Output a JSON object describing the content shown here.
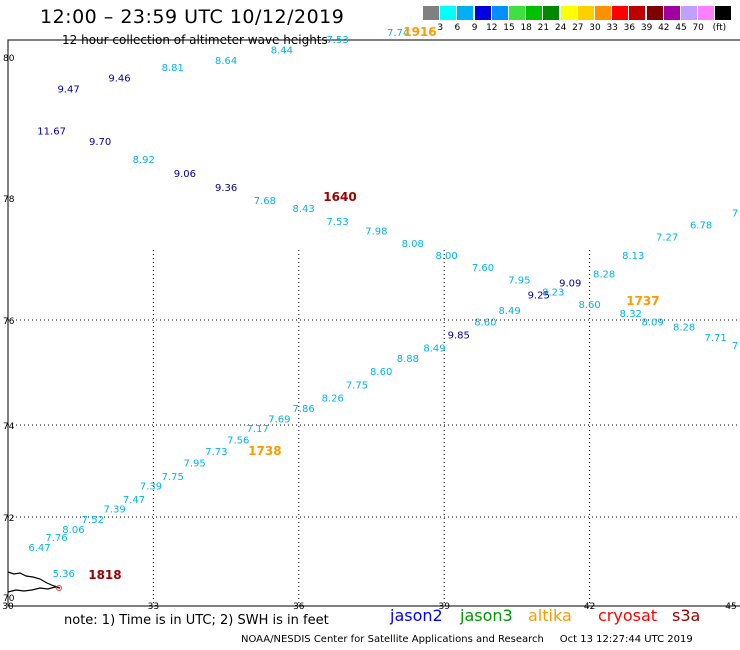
{
  "header": {
    "title": "12:00 – 23:59 UTC 10/12/2019",
    "subtitle": "12 hour collection of altimeter wave heights"
  },
  "scale": {
    "unit": "(ft)",
    "bins": [
      {
        "label": "",
        "color": "#808080"
      },
      {
        "label": "3",
        "color": "#00ffff"
      },
      {
        "label": "6",
        "color": "#00b0f0"
      },
      {
        "label": "9",
        "color": "#0000e0"
      },
      {
        "label": "12",
        "color": "#0090ff"
      },
      {
        "label": "15",
        "color": "#40e040"
      },
      {
        "label": "18",
        "color": "#00c000"
      },
      {
        "label": "21",
        "color": "#008800"
      },
      {
        "label": "24",
        "color": "#ffff00"
      },
      {
        "label": "27",
        "color": "#ffd000"
      },
      {
        "label": "30",
        "color": "#ff9000"
      },
      {
        "label": "33",
        "color": "#ff0000"
      },
      {
        "label": "36",
        "color": "#c00000"
      },
      {
        "label": "39",
        "color": "#800000"
      },
      {
        "label": "42",
        "color": "#a000a0"
      },
      {
        "label": "45",
        "color": "#c0a0ff"
      },
      {
        "label": "70",
        "color": "#ff80ff"
      },
      {
        "label": "",
        "color": "#000000"
      }
    ]
  },
  "axes": {
    "x_ticks": [
      "30",
      "33",
      "36",
      "39",
      "42",
      "45"
    ],
    "y_ticks": [
      "70",
      "72",
      "74",
      "76",
      "78",
      "80"
    ],
    "lon_range": [
      30,
      45
    ],
    "lat_range": [
      70,
      80
    ],
    "grid": true
  },
  "colors": {
    "cyan": "#00b4e6",
    "navy": "#0000a0",
    "jason2": "#0000ff",
    "jason3": "#009900",
    "altika": "#ff9900",
    "cryosat": "#ff0000",
    "s3a": "#990000",
    "coast": "#000000"
  },
  "tracks": [
    {
      "points": [
        {
          "value": "11.67",
          "lon": 30.9,
          "lat": 78.9,
          "color": "navy"
        },
        {
          "value": "9.70",
          "lon": 31.9,
          "lat": 78.75,
          "color": "navy"
        },
        {
          "value": "8.92",
          "lon": 32.8,
          "lat": 78.5,
          "color": "cyan"
        },
        {
          "value": "9.06",
          "lon": 33.65,
          "lat": 78.3,
          "color": "navy"
        },
        {
          "value": "9.36",
          "lon": 34.5,
          "lat": 78.1,
          "color": "navy"
        },
        {
          "value": "7.68",
          "lon": 35.3,
          "lat": 77.9,
          "color": "cyan"
        },
        {
          "value": "8.43",
          "lon": 36.1,
          "lat": 77.77,
          "color": "cyan"
        },
        {
          "value": "7.53",
          "lon": 36.8,
          "lat": 77.56,
          "color": "cyan"
        },
        {
          "value": "7.98",
          "lon": 37.6,
          "lat": 77.4,
          "color": "cyan"
        },
        {
          "value": "8.08",
          "lon": 38.35,
          "lat": 77.2,
          "color": "cyan"
        },
        {
          "value": "8.00",
          "lon": 39.05,
          "lat": 77.0,
          "color": "cyan"
        },
        {
          "value": "7.60",
          "lon": 39.8,
          "lat": 76.8,
          "color": "cyan"
        },
        {
          "value": "7.95",
          "lon": 40.55,
          "lat": 76.6,
          "color": "cyan"
        },
        {
          "value": "8.23",
          "lon": 41.25,
          "lat": 76.4,
          "color": "cyan"
        },
        {
          "value": "8.60",
          "lon": 42.0,
          "lat": 76.2,
          "color": "cyan"
        },
        {
          "value": "8.32",
          "lon": 42.85,
          "lat": 76.05,
          "color": "cyan"
        },
        {
          "value": "8.09",
          "lon": 43.3,
          "lat": 75.9,
          "color": "cyan"
        },
        {
          "value": "8.28",
          "lon": 43.95,
          "lat": 75.8,
          "color": "cyan"
        },
        {
          "value": "7.71",
          "lon": 44.6,
          "lat": 75.6,
          "color": "cyan"
        },
        {
          "value": "7",
          "lon": 45.0,
          "lat": 75.45,
          "color": "cyan"
        }
      ]
    },
    {
      "points": [
        {
          "value": "9.47",
          "lon": 31.25,
          "lat": 79.5,
          "color": "navy"
        },
        {
          "value": "9.46",
          "lon": 32.3,
          "lat": 79.65,
          "color": "navy"
        },
        {
          "value": "8.81",
          "lon": 33.4,
          "lat": 79.8,
          "color": "cyan"
        },
        {
          "value": "8.64",
          "lon": 34.5,
          "lat": 79.9,
          "color": "cyan"
        },
        {
          "value": "8.44",
          "lon": 35.65,
          "lat": 80.05,
          "color": "cyan"
        },
        {
          "value": "7.53",
          "lon": 36.8,
          "lat": 80.2,
          "color": "cyan"
        },
        {
          "value": "7.74",
          "lon": 38.05,
          "lat": 80.3,
          "color": "cyan"
        }
      ]
    },
    {
      "points": [
        {
          "value": "5.36",
          "lon": 31.15,
          "lat": 70.5,
          "color": "cyan"
        },
        {
          "value": "6.47",
          "lon": 30.65,
          "lat": 71.15,
          "color": "cyan"
        },
        {
          "value": "7.76",
          "lon": 31.0,
          "lat": 71.4,
          "color": "cyan"
        },
        {
          "value": "8.06",
          "lon": 31.35,
          "lat": 71.6,
          "color": "cyan"
        },
        {
          "value": "7.52",
          "lon": 31.75,
          "lat": 71.85,
          "color": "cyan"
        },
        {
          "value": "7.39",
          "lon": 32.2,
          "lat": 72.1,
          "color": "cyan"
        },
        {
          "value": "7.47",
          "lon": 32.6,
          "lat": 72.3,
          "color": "cyan"
        },
        {
          "value": "7.39",
          "lon": 32.95,
          "lat": 72.6,
          "color": "cyan"
        },
        {
          "value": "7.75",
          "lon": 33.4,
          "lat": 72.8,
          "color": "cyan"
        },
        {
          "value": "7.95",
          "lon": 33.85,
          "lat": 73.1,
          "color": "cyan"
        },
        {
          "value": "7.73",
          "lon": 34.3,
          "lat": 73.35,
          "color": "cyan"
        },
        {
          "value": "7.56",
          "lon": 34.75,
          "lat": 73.6,
          "color": "cyan"
        },
        {
          "value": "7.17",
          "lon": 35.15,
          "lat": 73.85,
          "color": "cyan"
        },
        {
          "value": "7.69",
          "lon": 35.6,
          "lat": 74.05,
          "color": "cyan"
        },
        {
          "value": "7.86",
          "lon": 36.1,
          "lat": 74.25,
          "color": "cyan"
        },
        {
          "value": "8.26",
          "lon": 36.7,
          "lat": 74.45,
          "color": "cyan"
        },
        {
          "value": "7.75",
          "lon": 37.2,
          "lat": 74.7,
          "color": "cyan"
        },
        {
          "value": "8.60",
          "lon": 37.7,
          "lat": 74.95,
          "color": "cyan"
        },
        {
          "value": "8.88",
          "lon": 38.25,
          "lat": 75.2,
          "color": "cyan"
        },
        {
          "value": "8.49",
          "lon": 38.8,
          "lat": 75.4,
          "color": "cyan"
        },
        {
          "value": "9.85",
          "lon": 39.3,
          "lat": 75.65,
          "color": "navy"
        },
        {
          "value": "8.60",
          "lon": 39.85,
          "lat": 75.9,
          "color": "cyan"
        },
        {
          "value": "8.49",
          "lon": 40.35,
          "lat": 76.1,
          "color": "cyan"
        },
        {
          "value": "9.25",
          "lon": 40.95,
          "lat": 76.35,
          "color": "navy"
        },
        {
          "value": "9.09",
          "lon": 41.6,
          "lat": 76.55,
          "color": "navy"
        },
        {
          "value": "8.28",
          "lon": 42.3,
          "lat": 76.7,
          "color": "cyan"
        },
        {
          "value": "8.13",
          "lon": 42.9,
          "lat": 77.0,
          "color": "cyan"
        },
        {
          "value": "7.27",
          "lon": 43.6,
          "lat": 77.3,
          "color": "cyan"
        },
        {
          "value": "6.78",
          "lon": 44.3,
          "lat": 77.5,
          "color": "cyan"
        },
        {
          "value": "7",
          "lon": 45.0,
          "lat": 77.7,
          "color": "cyan"
        }
      ]
    }
  ],
  "times": [
    {
      "value": "1916",
      "lon": 38.5,
      "lat": 80.3,
      "color": "altika"
    },
    {
      "value": "1640",
      "lon": 36.85,
      "lat": 77.95,
      "color": "s3a"
    },
    {
      "value": "1737",
      "lon": 43.1,
      "lat": 76.25,
      "color": "altika"
    },
    {
      "value": "1738",
      "lon": 35.3,
      "lat": 73.35,
      "color": "altika"
    },
    {
      "value": "1818",
      "lon": 32.0,
      "lat": 70.45,
      "color": "s3a"
    }
  ],
  "footer": {
    "note": "note: 1) Time is in UTC; 2) SWH is in feet",
    "satellites": [
      "jason2",
      "jason3",
      "altika",
      "cryosat",
      "s3a"
    ],
    "credit": "NOAA/NESDIS Center for Satellite Applications and Research",
    "timestamp": "Oct 13 12:27:44 UTC 2019"
  }
}
